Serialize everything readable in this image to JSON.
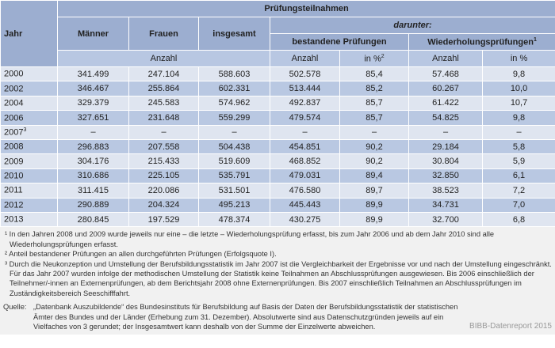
{
  "header": {
    "jahr": "Jahr",
    "group": "Prüfungsteilnahmen",
    "maenner": "Männer",
    "frauen": "Frauen",
    "insgesamt": "insgesamt",
    "darunter": "darunter:",
    "bestandene": "bestandene Prüfungen",
    "wiederholung": "Wiederholungsprüfungen",
    "wiederholung_sup": "1",
    "unit_anzahl": "Anzahl",
    "unit_pct": "in %",
    "unit_pct_sup": "2"
  },
  "rows": [
    {
      "jahr": "2000",
      "sup": "",
      "m": "341.499",
      "f": "247.104",
      "g": "588.603",
      "ba": "502.578",
      "bp": "85,4",
      "wa": "57.468",
      "wp": "9,8"
    },
    {
      "jahr": "2002",
      "sup": "",
      "m": "346.467",
      "f": "255.864",
      "g": "602.331",
      "ba": "513.444",
      "bp": "85,2",
      "wa": "60.267",
      "wp": "10,0"
    },
    {
      "jahr": "2004",
      "sup": "",
      "m": "329.379",
      "f": "245.583",
      "g": "574.962",
      "ba": "492.837",
      "bp": "85,7",
      "wa": "61.422",
      "wp": "10,7"
    },
    {
      "jahr": "2006",
      "sup": "",
      "m": "327.651",
      "f": "231.648",
      "g": "559.299",
      "ba": "479.574",
      "bp": "85,7",
      "wa": "54.825",
      "wp": "9,8"
    },
    {
      "jahr": "2007",
      "sup": "3",
      "m": "–",
      "f": "–",
      "g": "–",
      "ba": "–",
      "bp": "–",
      "wa": "–",
      "wp": "–"
    },
    {
      "jahr": "2008",
      "sup": "",
      "m": "296.883",
      "f": "207.558",
      "g": "504.438",
      "ba": "454.851",
      "bp": "90,2",
      "wa": "29.184",
      "wp": "5,8"
    },
    {
      "jahr": "2009",
      "sup": "",
      "m": "304.176",
      "f": "215.433",
      "g": "519.609",
      "ba": "468.852",
      "bp": "90,2",
      "wa": "30.804",
      "wp": "5,9"
    },
    {
      "jahr": "2010",
      "sup": "",
      "m": "310.686",
      "f": "225.105",
      "g": "535.791",
      "ba": "479.031",
      "bp": "89,4",
      "wa": "32.850",
      "wp": "6,1"
    },
    {
      "jahr": "2011",
      "sup": "",
      "m": "311.415",
      "f": "220.086",
      "g": "531.501",
      "ba": "476.580",
      "bp": "89,7",
      "wa": "38.523",
      "wp": "7,2"
    },
    {
      "jahr": "2012",
      "sup": "",
      "m": "290.889",
      "f": "204.324",
      "g": "495.213",
      "ba": "445.443",
      "bp": "89,9",
      "wa": "34.731",
      "wp": "7,0"
    },
    {
      "jahr": "2013",
      "sup": "",
      "m": "280.845",
      "f": "197.529",
      "g": "478.374",
      "ba": "430.275",
      "bp": "89,9",
      "wa": "32.700",
      "wp": "6,8"
    }
  ],
  "footnotes": [
    "¹ In den Jahren 2008 und 2009 wurde jeweils nur eine – die letzte – Wiederholungsprüfung erfasst, bis zum Jahr 2006 und ab dem Jahr 2010 sind alle Wiederholungsprüfungen erfasst.",
    "² Anteil bestandener Prüfungen an allen durchgeführten Prüfungen (Erfolgsquote I).",
    "³ Durch die Neukonzeption und Umstellung der Berufsbildungsstatistik im Jahr 2007 ist die Vergleichbarkeit der Ergebnisse vor und nach der Umstellung eingeschränkt. Für das Jahr 2007 wurden infolge der methodischen Umstellung der Statistik keine Teilnahmen an Abschlussprüfungen ausgewiesen. Bis 2006 einschließlich der Teilnehmer/-innen an Externenprüfungen, ab dem Berichtsjahr 2008 ohne Externenprüfungen. Bis 2007 einschließlich Teilnahmen an Abschlussprüfungen im Zuständigkeitsbereich Seeschifffahrt."
  ],
  "source": {
    "label": "Quelle:",
    "text": "„Datenbank Auszubildende“ des Bundesinstituts für Berufsbildung auf Basis der Daten der Berufsbildungsstatistik der statistischen Ämter des Bundes und der Länder (Erhebung zum 31. Dezember). Absolutwerte sind aus Datenschutzgründen jeweils auf ein Vielfaches von 3 gerundet; der Insgesamtwert kann deshalb von der Summe der Einzelwerte abweichen."
  },
  "credit": "BIBB-Datenreport 2015"
}
